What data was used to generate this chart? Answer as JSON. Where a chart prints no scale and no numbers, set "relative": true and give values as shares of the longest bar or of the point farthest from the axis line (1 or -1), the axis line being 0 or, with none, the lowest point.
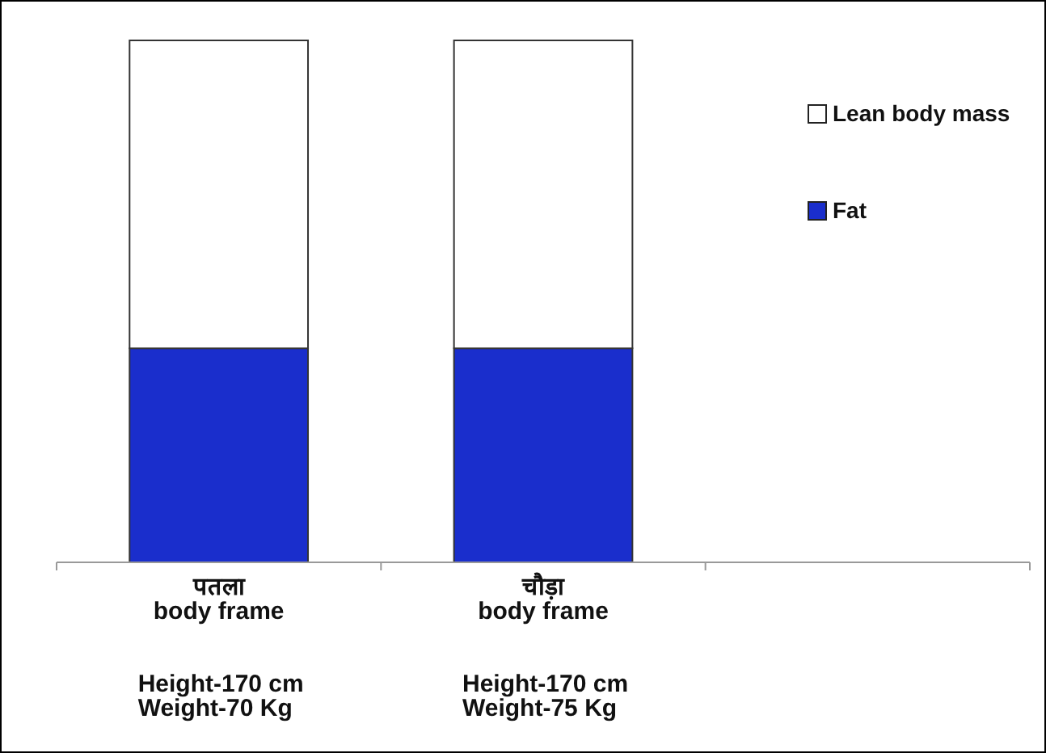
{
  "chart_data": {
    "type": "bar",
    "stacked": true,
    "relative": true,
    "categories": [
      "पतला\nbody frame",
      "चौड़ा\nbody frame",
      null
    ],
    "series": [
      {
        "name": "Fat",
        "color": "#1a2ecc",
        "values": [
          0.41,
          0.41,
          null
        ]
      },
      {
        "name": "Lean body mass",
        "color": "#ffffff",
        "values": [
          0.59,
          0.59,
          null
        ]
      }
    ],
    "legend": "top right",
    "annotations": [
      "Height-170 cm\nWeight-70 Kg",
      "Height-170 cm\nWeight-75 Kg"
    ]
  }
}
